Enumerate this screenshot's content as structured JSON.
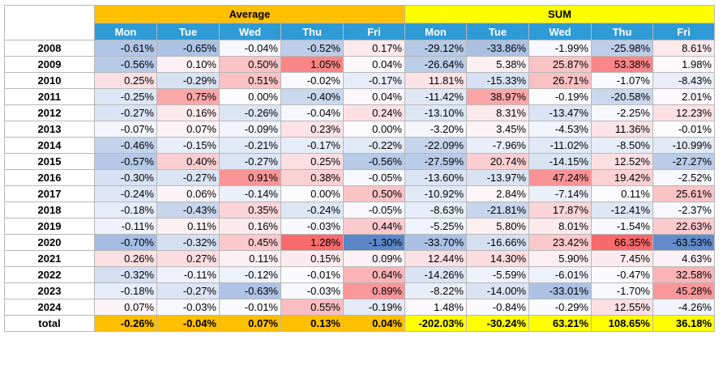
{
  "groups": {
    "average": "Average",
    "sum": "SUM"
  },
  "days": [
    "Mon",
    "Tue",
    "Wed",
    "Thu",
    "Fri"
  ],
  "rows": [
    {
      "year": "2008",
      "avg": [
        "-0.61%",
        "-0.65%",
        "-0.04%",
        "-0.52%",
        "0.17%"
      ],
      "sum": [
        "-29.12%",
        "-33.86%",
        "-1.99%",
        "-25.98%",
        "8.61%"
      ]
    },
    {
      "year": "2009",
      "avg": [
        "-0.56%",
        "0.10%",
        "0.50%",
        "1.05%",
        "0.04%"
      ],
      "sum": [
        "-26.64%",
        "5.38%",
        "25.87%",
        "53.38%",
        "1.98%"
      ]
    },
    {
      "year": "2010",
      "avg": [
        "0.25%",
        "-0.29%",
        "0.51%",
        "-0.02%",
        "-0.17%"
      ],
      "sum": [
        "11.81%",
        "-15.33%",
        "26.71%",
        "-1.07%",
        "-8.43%"
      ]
    },
    {
      "year": "2011",
      "avg": [
        "-0.25%",
        "0.75%",
        "0.00%",
        "-0.40%",
        "0.04%"
      ],
      "sum": [
        "-11.42%",
        "38.97%",
        "-0.19%",
        "-20.58%",
        "2.01%"
      ]
    },
    {
      "year": "2012",
      "avg": [
        "-0.27%",
        "0.16%",
        "-0.26%",
        "-0.04%",
        "0.24%"
      ],
      "sum": [
        "-13.10%",
        "8.31%",
        "-13.47%",
        "-2.25%",
        "12.23%"
      ]
    },
    {
      "year": "2013",
      "avg": [
        "-0.07%",
        "0.07%",
        "-0.09%",
        "0.23%",
        "0.00%"
      ],
      "sum": [
        "-3.20%",
        "3.45%",
        "-4.53%",
        "11.36%",
        "-0.01%"
      ]
    },
    {
      "year": "2014",
      "avg": [
        "-0.46%",
        "-0.15%",
        "-0.21%",
        "-0.17%",
        "-0.22%"
      ],
      "sum": [
        "-22.09%",
        "-7.96%",
        "-11.02%",
        "-8.50%",
        "-10.99%"
      ]
    },
    {
      "year": "2015",
      "avg": [
        "-0.57%",
        "0.40%",
        "-0.27%",
        "0.25%",
        "-0.56%"
      ],
      "sum": [
        "-27.59%",
        "20.74%",
        "-14.15%",
        "12.52%",
        "-27.27%"
      ]
    },
    {
      "year": "2016",
      "avg": [
        "-0.30%",
        "-0.27%",
        "0.91%",
        "0.38%",
        "-0.05%"
      ],
      "sum": [
        "-13.60%",
        "-13.97%",
        "47.24%",
        "19.42%",
        "-2.52%"
      ]
    },
    {
      "year": "2017",
      "avg": [
        "-0.24%",
        "0.06%",
        "-0.14%",
        "0.00%",
        "0.50%"
      ],
      "sum": [
        "-10.92%",
        "2.84%",
        "-7.14%",
        "0.11%",
        "25.61%"
      ]
    },
    {
      "year": "2018",
      "avg": [
        "-0.18%",
        "-0.43%",
        "0.35%",
        "-0.24%",
        "-0.05%"
      ],
      "sum": [
        "-8.63%",
        "-21.81%",
        "17.87%",
        "-12.41%",
        "-2.37%"
      ]
    },
    {
      "year": "2019",
      "avg": [
        "-0.11%",
        "0.11%",
        "0.16%",
        "-0.03%",
        "0.44%"
      ],
      "sum": [
        "-5.25%",
        "5.80%",
        "8.01%",
        "-1.54%",
        "22.63%"
      ]
    },
    {
      "year": "2020",
      "avg": [
        "-0.70%",
        "-0.32%",
        "0.45%",
        "1.28%",
        "-1.30%"
      ],
      "sum": [
        "-33.70%",
        "-16.66%",
        "23.42%",
        "66.35%",
        "-63.53%"
      ]
    },
    {
      "year": "2021",
      "avg": [
        "0.26%",
        "0.27%",
        "0.11%",
        "0.15%",
        "0.09%"
      ],
      "sum": [
        "12.44%",
        "14.30%",
        "5.90%",
        "7.45%",
        "4.63%"
      ]
    },
    {
      "year": "2022",
      "avg": [
        "-0.32%",
        "-0.11%",
        "-0.12%",
        "-0.01%",
        "0.64%"
      ],
      "sum": [
        "-14.26%",
        "-5.59%",
        "-6.01%",
        "-0.47%",
        "32.58%"
      ]
    },
    {
      "year": "2023",
      "avg": [
        "-0.18%",
        "-0.27%",
        "-0.63%",
        "-0.03%",
        "0.89%"
      ],
      "sum": [
        "-8.22%",
        "-14.00%",
        "-33.01%",
        "-1.70%",
        "45.28%"
      ]
    },
    {
      "year": "2024",
      "avg": [
        "0.07%",
        "-0.03%",
        "-0.01%",
        "0.55%",
        "-0.19%"
      ],
      "sum": [
        "1.48%",
        "-0.84%",
        "-0.29%",
        "12.55%",
        "-4.26%"
      ]
    }
  ],
  "total": {
    "label": "total",
    "avg": [
      "-0.26%",
      "-0.04%",
      "0.07%",
      "0.13%",
      "0.04%"
    ],
    "sum": [
      "-202.03%",
      "-30.24%",
      "63.21%",
      "108.65%",
      "36.18%"
    ]
  },
  "colors": {
    "average_header": "#ffc000",
    "sum_header": "#ffff00",
    "day_header": "#2f9bd6",
    "negative_scale": "#5b87c9",
    "positive_scale": "#f8696b"
  }
}
